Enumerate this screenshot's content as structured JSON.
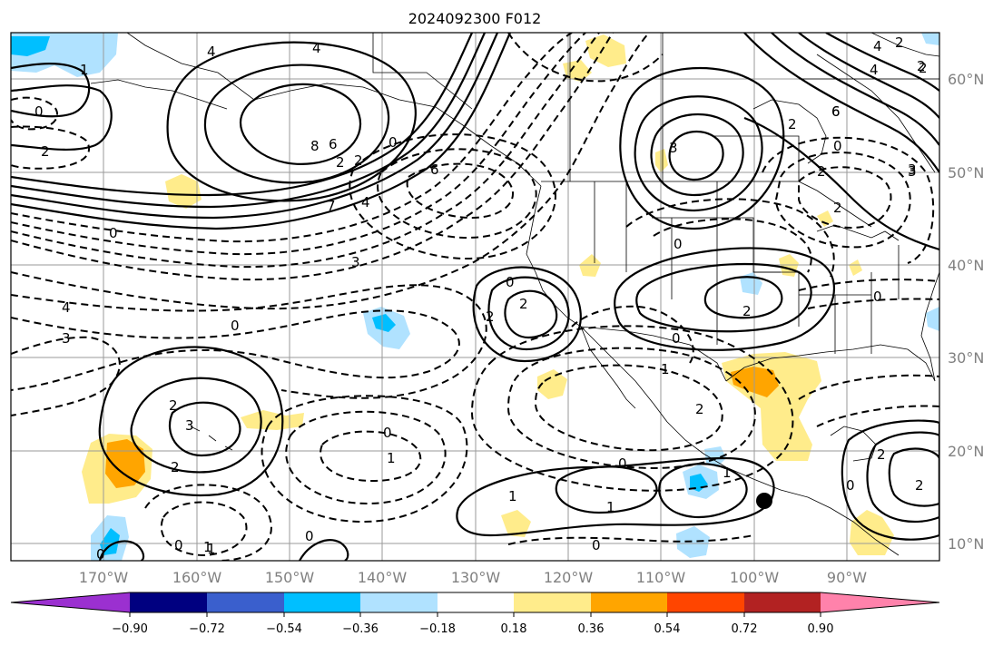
{
  "title": "2024092300 F012",
  "lat_labels": [
    "60°N",
    "50°N",
    "40°N",
    "30°N",
    "20°N",
    "10°N"
  ],
  "lon_labels": [
    "170°W",
    "160°W",
    "150°W",
    "140°W",
    "130°W",
    "120°W",
    "110°W",
    "100°W",
    "90°W"
  ],
  "colorbar": {
    "ticks": [
      "−0.90",
      "−0.72",
      "−0.54",
      "−0.36",
      "−0.18",
      "0.18",
      "0.36",
      "0.54",
      "0.72",
      "0.90"
    ],
    "colors": [
      "#9b30d0",
      "#000080",
      "#3a5fcd",
      "#00bfff",
      "#b0e2ff",
      "#ffffff",
      "#ffec8b",
      "#ffa500",
      "#ff4500",
      "#b22222",
      "#ff82ab"
    ]
  },
  "contour_labels": [
    "4",
    "4",
    "1",
    "0",
    "2",
    "8",
    "6",
    "2",
    "2",
    "0",
    "7",
    "6",
    "4",
    "0",
    "3",
    "4",
    "3",
    "0",
    "2",
    "2",
    "0",
    "0",
    "2",
    "2",
    "3",
    "0",
    "1",
    "2",
    "2",
    "0",
    "1",
    "0",
    "1",
    "1",
    "0",
    "1",
    "0",
    "3",
    "6",
    "4",
    "2",
    "0",
    "2",
    "3",
    "0",
    "2",
    "1",
    "0",
    "1",
    "0",
    "2",
    "6",
    "4",
    "2",
    "0",
    "2",
    "3",
    "2",
    "2"
  ],
  "colors": {
    "neg_light": "#b0e2ff",
    "neg_mid": "#00bfff",
    "pos_light": "#ffec8b",
    "pos_mid": "#ffa500"
  }
}
